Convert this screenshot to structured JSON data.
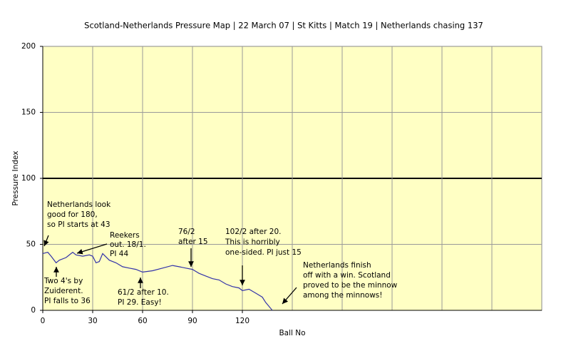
{
  "chart_data": {
    "type": "line",
    "title": "Scotland-Netherlands Pressure Map | 22 March 07 | St Kitts | Match 19 | Netherlands chasing 137",
    "x_label": "Ball No",
    "y_label": "Pressure Index",
    "x": [
      0,
      3,
      5,
      8,
      10,
      14,
      17,
      18,
      20,
      24,
      28,
      30,
      32,
      34,
      36,
      40,
      44,
      48,
      52,
      56,
      60,
      66,
      72,
      78,
      82,
      86,
      90,
      94,
      98,
      102,
      106,
      110,
      114,
      118,
      120,
      124,
      128,
      132,
      134,
      136,
      138
    ],
    "values": [
      43,
      44,
      41,
      36,
      38,
      40,
      43,
      44,
      42,
      41,
      42,
      41,
      36,
      37,
      43,
      38,
      36,
      33,
      32,
      31,
      29,
      30,
      32,
      34,
      33,
      32,
      31,
      28,
      26,
      24,
      23,
      20,
      18,
      17,
      15,
      16,
      13,
      10,
      6,
      3,
      0
    ],
    "color": "#3333aa",
    "xlim": [
      0,
      300
    ],
    "ylim": [
      0,
      200
    ],
    "xticks": [
      0,
      30,
      60,
      90,
      120
    ],
    "x_grid": [
      150,
      180,
      210,
      240,
      270
    ],
    "yticks": [
      0,
      50,
      100,
      150,
      200
    ],
    "highlight_ytick": 100,
    "grid": true,
    "annotations": [
      [
        "Netherlands look",
        "good for 180,",
        "so PI starts at 43"
      ],
      [
        "Two 4's by",
        "Zuiderent.",
        "PI falls to 36"
      ],
      [
        "Reekers",
        "out. 18/1.",
        "PI 44"
      ],
      [
        "61/2 after 10.",
        "PI 29. Easy!"
      ],
      [
        "76/2",
        "after 15"
      ],
      [
        "102/2 after 20.",
        "This is horribly",
        "one-sided. PI just 15"
      ],
      [
        "Netherlands finish",
        "off with a win. Scotland",
        "proved to be the minnow",
        "among the minnows!"
      ]
    ]
  }
}
